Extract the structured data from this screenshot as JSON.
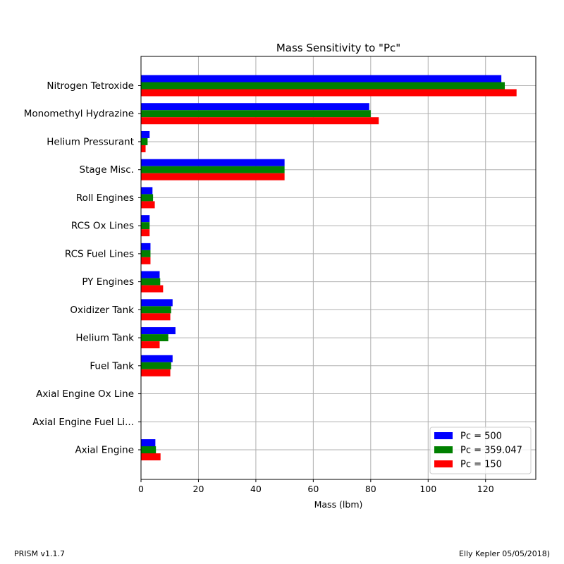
{
  "chart_data": {
    "type": "bar",
    "orientation": "horizontal",
    "title": "Mass Sensitivity to \"Pc\"",
    "xlabel": "Mass (lbm)",
    "ylabel": "",
    "xlim": [
      0,
      137.5
    ],
    "xticks": [
      0,
      20,
      40,
      60,
      80,
      100,
      120
    ],
    "grid": true,
    "legend_position": "lower-right",
    "categories": [
      "Nitrogen Tetroxide",
      "Monomethyl Hydrazine",
      "Helium Pressurant",
      "Stage Misc.",
      "Roll Engines",
      "RCS Ox Lines",
      "RCS Fuel Lines",
      "PY Engines",
      "Oxidizer Tank",
      "Helium Tank",
      "Fuel Tank",
      "Axial Engine Ox Line",
      "Axial Engine Fuel Li...",
      "Axial Engine"
    ],
    "series": [
      {
        "name": "Pc = 500",
        "color": "#0000ff",
        "values": [
          125.5,
          79.5,
          3.0,
          50.0,
          4.0,
          3.0,
          3.3,
          6.5,
          11.0,
          12.0,
          11.0,
          0,
          0,
          5.0
        ]
      },
      {
        "name": "Pc = 359.047",
        "color": "#008000",
        "values": [
          126.7,
          80.0,
          2.3,
          50.0,
          4.2,
          3.0,
          3.3,
          6.7,
          10.5,
          9.5,
          10.5,
          0,
          0,
          5.2
        ]
      },
      {
        "name": "Pc = 150",
        "color": "#ff0000",
        "values": [
          130.8,
          82.8,
          1.6,
          50.0,
          4.8,
          3.0,
          3.3,
          7.7,
          10.2,
          6.5,
          10.2,
          0,
          0,
          6.8
        ]
      }
    ]
  },
  "footer": {
    "left": "PRISM v1.1.7",
    "right": "Elly Kepler 05/05/2018)"
  }
}
